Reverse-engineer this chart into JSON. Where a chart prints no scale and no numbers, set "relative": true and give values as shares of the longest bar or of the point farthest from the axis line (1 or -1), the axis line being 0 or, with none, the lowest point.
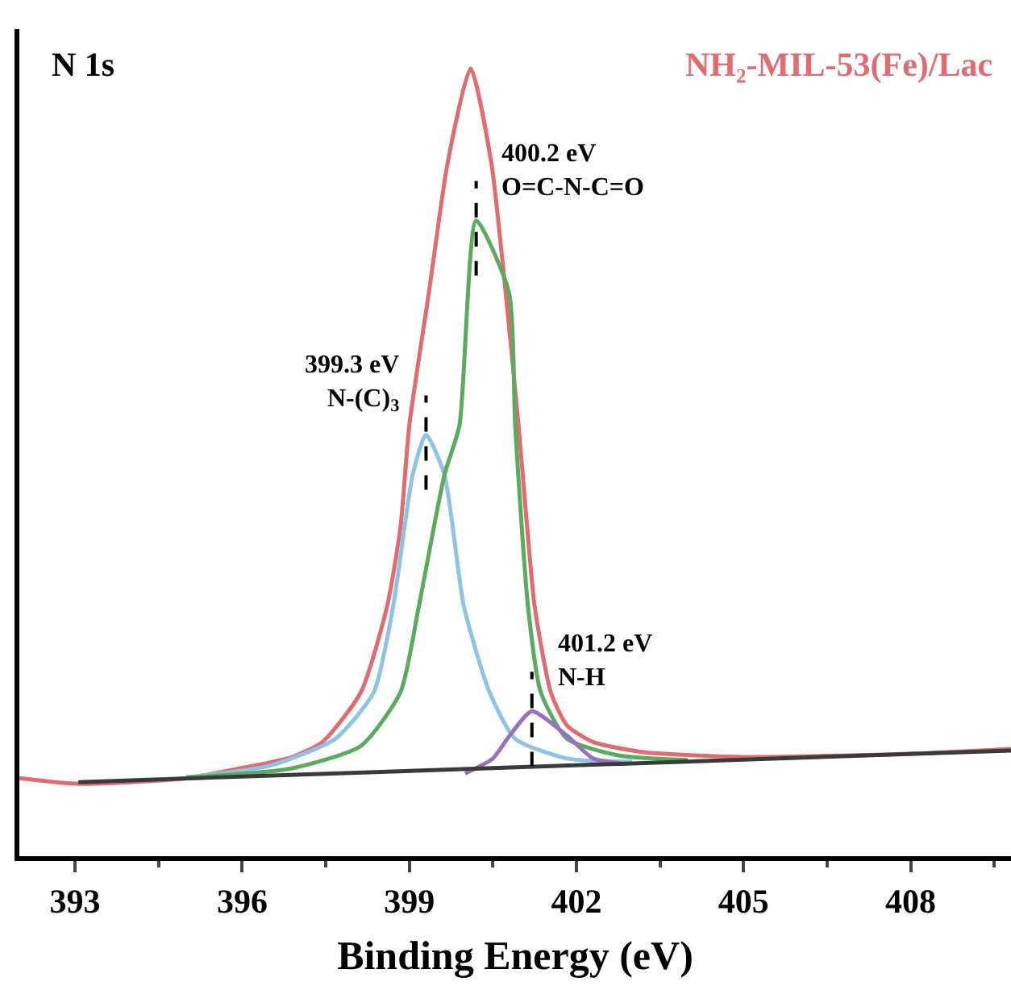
{
  "chart_data": {
    "type": "line",
    "relative": true,
    "xlabel": "Binding Energy (eV)",
    "xlim": [
      392,
      409.8
    ],
    "xticks": [
      393,
      396,
      399,
      402,
      405,
      408
    ],
    "annotations": [
      "N 1s",
      {
        "text": "399.3 eV\nN-(C)$_{3}$",
        "x": 399.3,
        "y": 0.535
      },
      {
        "text": "400.2 eV\nO=C-N-C=O",
        "x": 400.2,
        "y": 0.807
      },
      {
        "text": "401.2 eV\nN-H",
        "x": 401.2,
        "y": 0.184
      }
    ],
    "grid": false,
    "legend": false,
    "marker": "none",
    "line_style": "solid",
    "series": [
      {
        "name": "NH₂-MIL-53(Fe)/Lac",
        "color": "#e06c72",
        "x": [
          392,
          393,
          394,
          395,
          396,
          396.86,
          397.44,
          398.13,
          398.6,
          398.84,
          399.0,
          399.35,
          399.69,
          400.1,
          400.47,
          400.73,
          400.96,
          401.1,
          401.25,
          401.54,
          401.83,
          402.3,
          403.2,
          405,
          408,
          409.8
        ],
        "values": [
          0.099,
          0.092,
          0.094,
          0.099,
          0.112,
          0.125,
          0.145,
          0.208,
          0.317,
          0.417,
          0.547,
          0.715,
          0.881,
          1.0,
          0.881,
          0.715,
          0.547,
          0.43,
          0.317,
          0.208,
          0.166,
          0.145,
          0.132,
          0.126,
          0.13,
          0.136
        ]
      },
      {
        "color": "#8ec3e3",
        "x": [
          395,
          396.5,
          397.67,
          398.36,
          398.71,
          399.06,
          399.3,
          399.63,
          399.98,
          400.44,
          400.9,
          401.83,
          403
        ],
        "values": [
          0.1,
          0.115,
          0.149,
          0.208,
          0.317,
          0.484,
          0.535,
          0.484,
          0.317,
          0.208,
          0.149,
          0.124,
          0.12
        ]
      },
      {
        "color": "#5aab5e",
        "x": [
          395,
          396.86,
          398.13,
          398.84,
          399.17,
          399.63,
          399.9,
          400.2,
          400.79,
          400.9,
          401.13,
          401.36,
          401.83,
          402.75,
          404
        ],
        "values": [
          0.1,
          0.111,
          0.14,
          0.208,
          0.317,
          0.484,
          0.547,
          0.807,
          0.715,
          0.547,
          0.317,
          0.208,
          0.149,
          0.128,
          0.122
        ]
      },
      {
        "color": "#9b6fbf",
        "x": [
          400.0,
          400.5,
          400.8,
          401.2,
          401.83,
          402.3,
          402.8
        ],
        "values": [
          0.105,
          0.124,
          0.153,
          0.184,
          0.153,
          0.124,
          0.118
        ]
      },
      {
        "color": "#3a3a3a",
        "x": [
          393.06,
          409.8
        ],
        "values": [
          0.094,
          0.134
        ]
      }
    ]
  }
}
